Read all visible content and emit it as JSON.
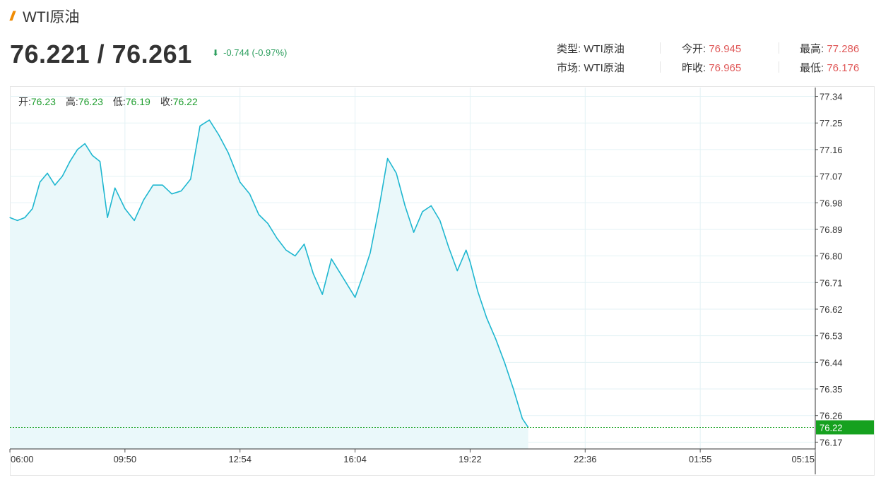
{
  "header": {
    "logo_icon": "slash-logo-icon",
    "title": "WTI原油",
    "price": "76.221 / 76.261",
    "change": "-0.744 (-0.97%)",
    "change_icon": "arrow-down-icon"
  },
  "stats": {
    "type_label": "类型:",
    "type_value": "WTI原油",
    "market_label": "市场:",
    "market_value": "WTI原油",
    "open_label": "今开:",
    "open_value": "76.945",
    "prev_close_label": "昨收:",
    "prev_close_value": "76.965",
    "high_label": "最高:",
    "high_value": "77.286",
    "low_label": "最低:",
    "low_value": "76.176"
  },
  "ohlc": {
    "open_label": "开:",
    "open_value": "76.23",
    "high_label": "高:",
    "high_value": "76.23",
    "low_label": "低:",
    "low_value": "76.19",
    "close_label": "收:",
    "close_value": "76.22"
  },
  "colors": {
    "line": "#1fb7d0",
    "area": "#eaf8fa",
    "last_price": "#16a11f",
    "red_value": "#e05a5a",
    "green_change": "#2e9f5f"
  },
  "chart_data": {
    "type": "area",
    "x_ticks": [
      "06:00",
      "09:50",
      "12:54",
      "16:04",
      "19:22",
      "22:36",
      "01:55",
      "05:15"
    ],
    "y_ticks": [
      77.34,
      77.25,
      77.16,
      77.07,
      76.98,
      76.89,
      76.8,
      76.71,
      76.62,
      76.53,
      76.44,
      76.35,
      76.26,
      76.17
    ],
    "ylim": [
      76.147,
      77.37
    ],
    "last_price": "76.22",
    "series": [
      {
        "x": [
          "06:00",
          "06:15",
          "06:30",
          "06:45",
          "07:00",
          "07:15",
          "07:30",
          "07:45",
          "08:00",
          "08:15",
          "08:30",
          "08:45",
          "09:00",
          "09:15",
          "09:30",
          "09:50",
          "10:05",
          "10:20",
          "10:35",
          "10:50",
          "11:05",
          "11:20",
          "11:35",
          "11:50",
          "12:05",
          "12:20",
          "12:35",
          "12:54",
          "13:10",
          "13:25",
          "13:40",
          "13:55",
          "14:10",
          "14:25",
          "14:40",
          "14:55",
          "15:10",
          "15:25",
          "15:40",
          "16:04",
          "16:15",
          "16:30",
          "16:45",
          "17:00",
          "17:15",
          "17:30",
          "17:45",
          "18:00",
          "18:15",
          "18:30",
          "18:45",
          "19:00",
          "19:15",
          "19:22",
          "19:35",
          "19:50",
          "20:05",
          "20:20",
          "20:35",
          "20:50",
          "21:00"
        ],
        "values": [
          76.93,
          76.92,
          76.93,
          76.96,
          77.05,
          77.08,
          77.04,
          77.07,
          77.12,
          77.16,
          77.18,
          77.14,
          77.12,
          76.93,
          77.03,
          76.96,
          76.92,
          76.99,
          77.04,
          77.04,
          77.01,
          77.02,
          77.06,
          77.24,
          77.26,
          77.21,
          77.15,
          77.05,
          77.01,
          76.94,
          76.91,
          76.86,
          76.82,
          76.8,
          76.84,
          76.74,
          76.67,
          76.79,
          76.74,
          76.66,
          76.72,
          76.81,
          76.96,
          77.13,
          77.08,
          76.97,
          76.88,
          76.95,
          76.97,
          76.92,
          76.83,
          76.75,
          76.82,
          76.78,
          76.68,
          76.59,
          76.52,
          76.44,
          76.35,
          76.25,
          76.22
        ]
      }
    ],
    "xlabel": "",
    "ylabel": "",
    "title": "",
    "grid": true
  }
}
